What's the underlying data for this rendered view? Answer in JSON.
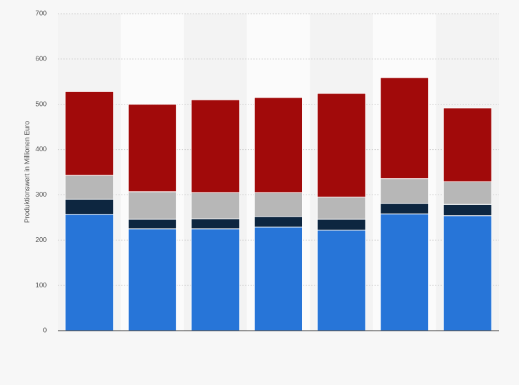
{
  "chart_data": {
    "type": "stacked_bar",
    "y_axis_label": "Produktionswert in Millionen Euro",
    "categories": [
      null,
      null,
      null,
      null,
      null,
      null,
      null
    ],
    "series": [
      {
        "color": "#2775d8",
        "values": [
          257,
          225,
          225,
          229,
          222,
          258,
          254
        ]
      },
      {
        "color": "#0d2640",
        "values": [
          33,
          21,
          22,
          23,
          24,
          23,
          25
        ]
      },
      {
        "color": "#b7b7b7",
        "values": [
          53,
          61,
          58,
          53,
          49,
          55,
          50
        ]
      },
      {
        "color": "#a10a0a",
        "values": [
          185,
          193,
          205,
          210,
          229,
          223,
          163
        ]
      }
    ],
    "ylim": [
      0,
      700
    ],
    "yticks": [
      0,
      100,
      200,
      300,
      400,
      500,
      600,
      700
    ],
    "grid": true
  }
}
